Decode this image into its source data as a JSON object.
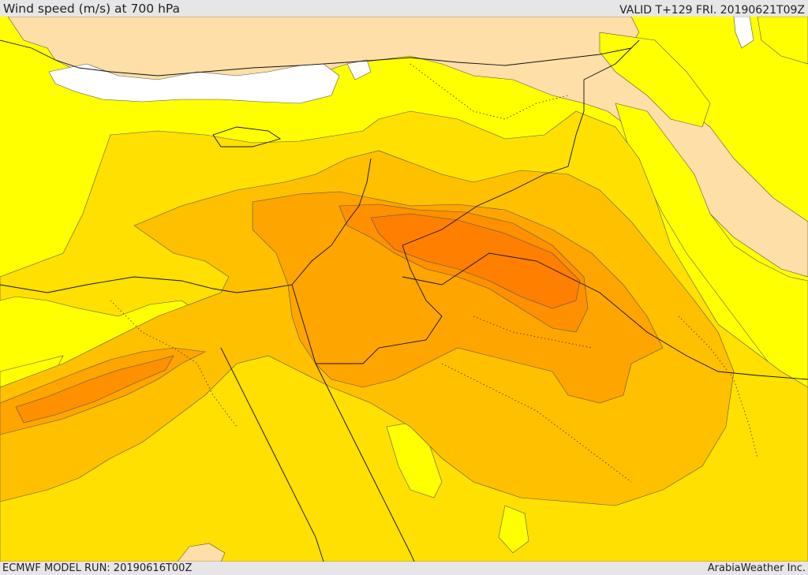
{
  "header": {
    "title": "Wind speed (m/s) at 700 hPa",
    "valid": "VALID T+129 FRI. 20190621T09Z"
  },
  "footer": {
    "model_run": "ECMWF MODEL RUN: 20190616T00Z",
    "credit": "ArabiaWeather Inc."
  },
  "colors": {
    "calm_white": "#ffffff",
    "tan": "#fddfa7",
    "yellow_light": "#ffff00",
    "yellow": "#ffe000",
    "orange_light": "#ffc000",
    "orange": "#ffa500",
    "orange_dark": "#ff9000",
    "orange_deep": "#ff7f00"
  }
}
